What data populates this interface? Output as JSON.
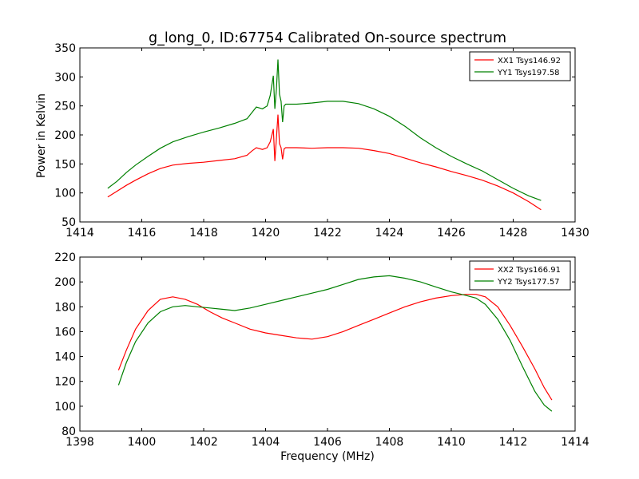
{
  "figure": {
    "title": "g_long_0, ID:67754 Calibrated On-source spectrum",
    "ylabel_top": "Power in Kelvin",
    "xlabel_bottom": "Frequency (MHz)"
  },
  "chart_data": [
    {
      "type": "line",
      "xlim": [
        1414,
        1430
      ],
      "ylim": [
        50,
        350
      ],
      "xticks": [
        1414,
        1416,
        1418,
        1420,
        1422,
        1424,
        1426,
        1428,
        1430
      ],
      "yticks": [
        50,
        100,
        150,
        200,
        250,
        300,
        350
      ],
      "legend": "top-right",
      "grid": false,
      "series": [
        {
          "name": "XX1 Tsys146.92",
          "color": "#ff0000",
          "x": [
            1414.9,
            1415.2,
            1415.5,
            1415.8,
            1416.2,
            1416.6,
            1417.0,
            1417.5,
            1418.0,
            1418.5,
            1419.0,
            1419.4,
            1419.55,
            1419.7,
            1419.9,
            1420.05,
            1420.15,
            1420.25,
            1420.3,
            1420.35,
            1420.4,
            1420.45,
            1420.5,
            1420.55,
            1420.6,
            1420.65,
            1420.75,
            1421.0,
            1421.5,
            1422.0,
            1422.5,
            1423.0,
            1423.5,
            1424.0,
            1424.5,
            1425.0,
            1425.5,
            1426.0,
            1426.5,
            1427.0,
            1427.5,
            1428.0,
            1428.5,
            1428.9
          ],
          "y": [
            93,
            103,
            113,
            122,
            133,
            142,
            148,
            151,
            153,
            156,
            159,
            165,
            172,
            178,
            175,
            178,
            188,
            210,
            155,
            195,
            235,
            185,
            178,
            158,
            176,
            178,
            178,
            178,
            177,
            178,
            178,
            177,
            173,
            168,
            160,
            152,
            145,
            137,
            130,
            122,
            112,
            100,
            85,
            71
          ]
        },
        {
          "name": "YY1 Tsys197.58",
          "color": "#008000",
          "x": [
            1414.9,
            1415.2,
            1415.5,
            1415.8,
            1416.2,
            1416.6,
            1417.0,
            1417.5,
            1418.0,
            1418.5,
            1419.0,
            1419.4,
            1419.55,
            1419.7,
            1419.9,
            1420.05,
            1420.15,
            1420.25,
            1420.3,
            1420.35,
            1420.4,
            1420.45,
            1420.5,
            1420.55,
            1420.6,
            1420.65,
            1420.75,
            1421.0,
            1421.5,
            1422.0,
            1422.5,
            1423.0,
            1423.5,
            1424.0,
            1424.5,
            1425.0,
            1425.5,
            1426.0,
            1426.5,
            1427.0,
            1427.5,
            1428.0,
            1428.5,
            1428.9
          ],
          "y": [
            108,
            120,
            135,
            148,
            163,
            177,
            188,
            197,
            205,
            212,
            220,
            228,
            238,
            248,
            245,
            250,
            268,
            302,
            245,
            280,
            330,
            270,
            258,
            222,
            250,
            253,
            253,
            253,
            255,
            258,
            258,
            254,
            245,
            232,
            215,
            195,
            178,
            163,
            150,
            138,
            123,
            108,
            95,
            87
          ]
        }
      ]
    },
    {
      "type": "line",
      "xlim": [
        1398,
        1414
      ],
      "ylim": [
        80,
        220
      ],
      "xticks": [
        1398,
        1400,
        1402,
        1404,
        1406,
        1408,
        1410,
        1412,
        1414
      ],
      "yticks": [
        80,
        100,
        120,
        140,
        160,
        180,
        200,
        220
      ],
      "legend": "top-right",
      "grid": false,
      "series": [
        {
          "name": "XX2 Tsys166.91",
          "color": "#ff0000",
          "x": [
            1399.25,
            1399.5,
            1399.8,
            1400.2,
            1400.6,
            1401.0,
            1401.4,
            1401.8,
            1402.2,
            1402.6,
            1403.0,
            1403.5,
            1404.0,
            1404.5,
            1405.0,
            1405.5,
            1406.0,
            1406.5,
            1407.0,
            1407.5,
            1408.0,
            1408.5,
            1409.0,
            1409.5,
            1410.0,
            1410.5,
            1410.8,
            1411.1,
            1411.5,
            1411.9,
            1412.3,
            1412.7,
            1413.0,
            1413.25
          ],
          "y": [
            129,
            145,
            162,
            177,
            186,
            188,
            186,
            182,
            176,
            171,
            167,
            162,
            159,
            157,
            155,
            154,
            156,
            160,
            165,
            170,
            175,
            180,
            184,
            187,
            189,
            190,
            190,
            188,
            180,
            165,
            148,
            130,
            115,
            105
          ]
        },
        {
          "name": "YY2 Tsys177.57",
          "color": "#008000",
          "x": [
            1399.25,
            1399.5,
            1399.8,
            1400.2,
            1400.6,
            1401.0,
            1401.4,
            1401.8,
            1402.2,
            1402.6,
            1403.0,
            1403.5,
            1404.0,
            1404.5,
            1405.0,
            1405.5,
            1406.0,
            1406.5,
            1407.0,
            1407.5,
            1408.0,
            1408.5,
            1409.0,
            1409.5,
            1410.0,
            1410.5,
            1410.8,
            1411.1,
            1411.5,
            1411.9,
            1412.3,
            1412.7,
            1413.0,
            1413.25
          ],
          "y": [
            117,
            135,
            152,
            167,
            176,
            180,
            181,
            180,
            179,
            178,
            177,
            179,
            182,
            185,
            188,
            191,
            194,
            198,
            202,
            204,
            205,
            203,
            200,
            196,
            192,
            189,
            187,
            182,
            170,
            153,
            132,
            112,
            101,
            96
          ]
        }
      ]
    }
  ]
}
